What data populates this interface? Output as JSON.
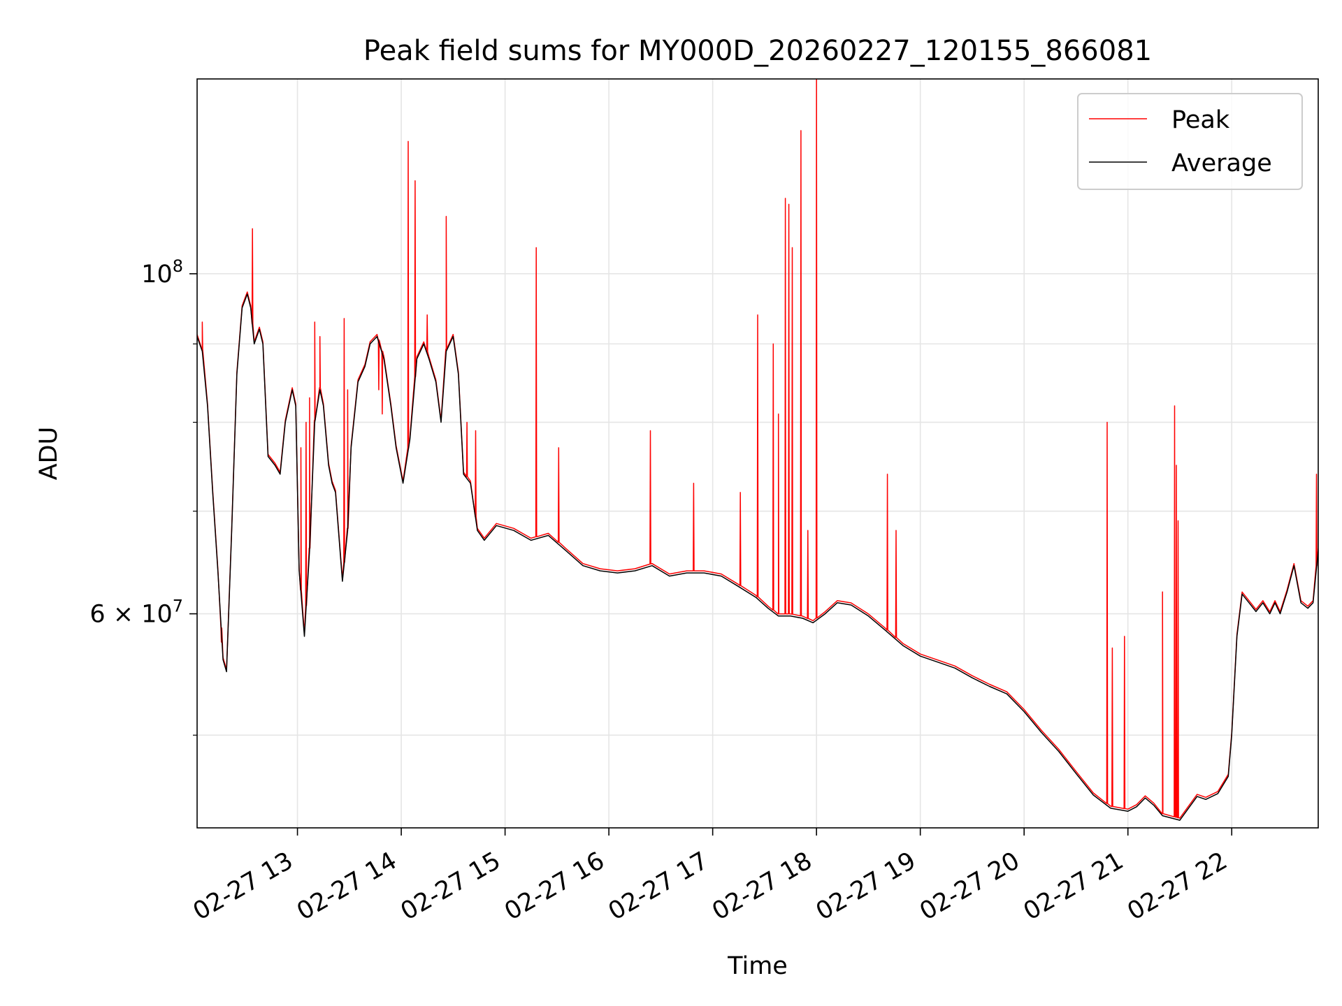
{
  "chart_data": {
    "type": "line",
    "title": "Peak field sums for MY000D_20260227_120155_866081",
    "xlabel": "Time",
    "ylabel": "ADU",
    "yscale": "log",
    "xlim": [
      "2026-02-27 12:02",
      "2026-02-27 22:50"
    ],
    "ylim": [
      43500000,
      134000000
    ],
    "grid": true,
    "legend": "top-right",
    "x_ticks": [
      "02-27 13",
      "02-27 14",
      "02-27 15",
      "02-27 16",
      "02-27 17",
      "02-27 18",
      "02-27 19",
      "02-27 20",
      "02-27 21",
      "02-27 22"
    ],
    "y_ticks": [
      {
        "value": 100000000,
        "base": "10",
        "exp": "8"
      },
      {
        "value": 60000000,
        "mant": "6",
        "base": "10",
        "exp": "7"
      }
    ],
    "series": [
      {
        "name": "Peak",
        "color": "#ff0000",
        "spikes": [
          [
            "2026-02-27 12:05",
            93000000
          ],
          [
            "2026-02-27 12:16",
            57500000
          ],
          [
            "2026-02-27 12:34",
            107000000
          ],
          [
            "2026-02-27 13:02",
            77000000
          ],
          [
            "2026-02-27 13:05",
            80000000
          ],
          [
            "2026-02-27 13:07",
            83000000
          ],
          [
            "2026-02-27 13:10",
            93000000
          ],
          [
            "2026-02-27 13:13",
            91000000
          ],
          [
            "2026-02-27 13:27",
            93500000
          ],
          [
            "2026-02-27 13:29",
            84000000
          ],
          [
            "2026-02-27 13:47",
            84000000
          ],
          [
            "2026-02-27 13:49",
            81000000
          ],
          [
            "2026-02-27 14:04",
            122000000
          ],
          [
            "2026-02-27 14:08",
            115000000
          ],
          [
            "2026-02-27 14:15",
            94000000
          ],
          [
            "2026-02-27 14:26",
            109000000
          ],
          [
            "2026-02-27 14:38",
            80000000
          ],
          [
            "2026-02-27 14:43",
            79000000
          ],
          [
            "2026-02-27 15:18",
            104000000
          ],
          [
            "2026-02-27 15:31",
            77000000
          ],
          [
            "2026-02-27 16:24",
            79000000
          ],
          [
            "2026-02-27 16:49",
            73000000
          ],
          [
            "2026-02-27 17:16",
            72000000
          ],
          [
            "2026-02-27 17:26",
            94000000
          ],
          [
            "2026-02-27 17:35",
            90000000
          ],
          [
            "2026-02-27 17:38",
            81000000
          ],
          [
            "2026-02-27 17:42",
            112000000
          ],
          [
            "2026-02-27 17:44",
            111000000
          ],
          [
            "2026-02-27 17:46",
            104000000
          ],
          [
            "2026-02-27 17:51",
            124000000
          ],
          [
            "2026-02-27 17:55",
            68000000
          ],
          [
            "2026-02-27 18:00",
            134000000
          ],
          [
            "2026-02-27 18:41",
            74000000
          ],
          [
            "2026-02-27 18:46",
            68000000
          ],
          [
            "2026-02-27 20:48",
            80000000
          ],
          [
            "2026-02-27 20:51",
            57000000
          ],
          [
            "2026-02-27 20:58",
            58000000
          ],
          [
            "2026-02-27 21:20",
            62000000
          ],
          [
            "2026-02-27 21:27",
            82000000
          ],
          [
            "2026-02-27 21:28",
            75000000
          ],
          [
            "2026-02-27 21:29",
            69000000
          ],
          [
            "2026-02-27 22:49",
            74000000
          ]
        ]
      },
      {
        "name": "Average",
        "color": "#000000",
        "points": [
          [
            "2026-02-27 12:02",
            91000000
          ],
          [
            "2026-02-27 12:05",
            89000000
          ],
          [
            "2026-02-27 12:08",
            82000000
          ],
          [
            "2026-02-27 12:11",
            72000000
          ],
          [
            "2026-02-27 12:14",
            64000000
          ],
          [
            "2026-02-27 12:17",
            56000000
          ],
          [
            "2026-02-27 12:19",
            55000000
          ],
          [
            "2026-02-27 12:22",
            68000000
          ],
          [
            "2026-02-27 12:25",
            86000000
          ],
          [
            "2026-02-27 12:28",
            95000000
          ],
          [
            "2026-02-27 12:31",
            97000000
          ],
          [
            "2026-02-27 12:33",
            95000000
          ],
          [
            "2026-02-27 12:35",
            90000000
          ],
          [
            "2026-02-27 12:38",
            92000000
          ],
          [
            "2026-02-27 12:40",
            90000000
          ],
          [
            "2026-02-27 12:43",
            76000000
          ],
          [
            "2026-02-27 12:47",
            75000000
          ],
          [
            "2026-02-27 12:50",
            74000000
          ],
          [
            "2026-02-27 12:53",
            80000000
          ],
          [
            "2026-02-27 12:57",
            84000000
          ],
          [
            "2026-02-27 12:59",
            82000000
          ],
          [
            "2026-02-27 13:01",
            64000000
          ],
          [
            "2026-02-27 13:02",
            62000000
          ],
          [
            "2026-02-27 13:04",
            58000000
          ],
          [
            "2026-02-27 13:07",
            66000000
          ],
          [
            "2026-02-27 13:10",
            80000000
          ],
          [
            "2026-02-27 13:13",
            84000000
          ],
          [
            "2026-02-27 13:15",
            82000000
          ],
          [
            "2026-02-27 13:18",
            75000000
          ],
          [
            "2026-02-27 13:20",
            73000000
          ],
          [
            "2026-02-27 13:22",
            72000000
          ],
          [
            "2026-02-27 13:26",
            63000000
          ],
          [
            "2026-02-27 13:29",
            68000000
          ],
          [
            "2026-02-27 13:31",
            77000000
          ],
          [
            "2026-02-27 13:35",
            85000000
          ],
          [
            "2026-02-27 13:39",
            87000000
          ],
          [
            "2026-02-27 13:42",
            90000000
          ],
          [
            "2026-02-27 13:46",
            91000000
          ],
          [
            "2026-02-27 13:50",
            88000000
          ],
          [
            "2026-02-27 13:54",
            82000000
          ],
          [
            "2026-02-27 13:57",
            77000000
          ],
          [
            "2026-02-27 14:01",
            73000000
          ],
          [
            "2026-02-27 14:05",
            78000000
          ],
          [
            "2026-02-27 14:09",
            88000000
          ],
          [
            "2026-02-27 14:13",
            90000000
          ],
          [
            "2026-02-27 14:16",
            88000000
          ],
          [
            "2026-02-27 14:20",
            85000000
          ],
          [
            "2026-02-27 14:23",
            80000000
          ],
          [
            "2026-02-27 14:26",
            89000000
          ],
          [
            "2026-02-27 14:30",
            91000000
          ],
          [
            "2026-02-27 14:33",
            86000000
          ],
          [
            "2026-02-27 14:36",
            74000000
          ],
          [
            "2026-02-27 14:40",
            73000000
          ],
          [
            "2026-02-27 14:44",
            68000000
          ],
          [
            "2026-02-27 14:48",
            67000000
          ],
          [
            "2026-02-27 14:55",
            68500000
          ],
          [
            "2026-02-27 15:05",
            68000000
          ],
          [
            "2026-02-27 15:15",
            67000000
          ],
          [
            "2026-02-27 15:25",
            67500000
          ],
          [
            "2026-02-27 15:35",
            66000000
          ],
          [
            "2026-02-27 15:45",
            64500000
          ],
          [
            "2026-02-27 15:55",
            64000000
          ],
          [
            "2026-02-27 16:05",
            63800000
          ],
          [
            "2026-02-27 16:15",
            64000000
          ],
          [
            "2026-02-27 16:25",
            64500000
          ],
          [
            "2026-02-27 16:35",
            63500000
          ],
          [
            "2026-02-27 16:45",
            63800000
          ],
          [
            "2026-02-27 16:55",
            63800000
          ],
          [
            "2026-02-27 17:05",
            63500000
          ],
          [
            "2026-02-27 17:15",
            62500000
          ],
          [
            "2026-02-27 17:25",
            61500000
          ],
          [
            "2026-02-27 17:32",
            60500000
          ],
          [
            "2026-02-27 17:38",
            59800000
          ],
          [
            "2026-02-27 17:45",
            59800000
          ],
          [
            "2026-02-27 17:52",
            59600000
          ],
          [
            "2026-02-27 17:58",
            59200000
          ],
          [
            "2026-02-27 18:05",
            60000000
          ],
          [
            "2026-02-27 18:12",
            61000000
          ],
          [
            "2026-02-27 18:20",
            60800000
          ],
          [
            "2026-02-27 18:30",
            59800000
          ],
          [
            "2026-02-27 18:40",
            58500000
          ],
          [
            "2026-02-27 18:50",
            57200000
          ],
          [
            "2026-02-27 19:00",
            56300000
          ],
          [
            "2026-02-27 19:10",
            55800000
          ],
          [
            "2026-02-27 19:20",
            55300000
          ],
          [
            "2026-02-27 19:30",
            54500000
          ],
          [
            "2026-02-27 19:40",
            53800000
          ],
          [
            "2026-02-27 19:50",
            53200000
          ],
          [
            "2026-02-27 20:00",
            51800000
          ],
          [
            "2026-02-27 20:10",
            50200000
          ],
          [
            "2026-02-27 20:20",
            48800000
          ],
          [
            "2026-02-27 20:30",
            47200000
          ],
          [
            "2026-02-27 20:40",
            45700000
          ],
          [
            "2026-02-27 20:50",
            44800000
          ],
          [
            "2026-02-27 21:00",
            44600000
          ],
          [
            "2026-02-27 21:05",
            44900000
          ],
          [
            "2026-02-27 21:10",
            45500000
          ],
          [
            "2026-02-27 21:15",
            45000000
          ],
          [
            "2026-02-27 21:20",
            44300000
          ],
          [
            "2026-02-27 21:30",
            44000000
          ],
          [
            "2026-02-27 21:35",
            44800000
          ],
          [
            "2026-02-27 21:40",
            45600000
          ],
          [
            "2026-02-27 21:45",
            45400000
          ],
          [
            "2026-02-27 21:52",
            45800000
          ],
          [
            "2026-02-27 21:58",
            47000000
          ],
          [
            "2026-02-27 22:00",
            50000000
          ],
          [
            "2026-02-27 22:03",
            58000000
          ],
          [
            "2026-02-27 22:06",
            61800000
          ],
          [
            "2026-02-27 22:10",
            61000000
          ],
          [
            "2026-02-27 22:14",
            60200000
          ],
          [
            "2026-02-27 22:18",
            61000000
          ],
          [
            "2026-02-27 22:22",
            60000000
          ],
          [
            "2026-02-27 22:25",
            61000000
          ],
          [
            "2026-02-27 22:28",
            60000000
          ],
          [
            "2026-02-27 22:32",
            62000000
          ],
          [
            "2026-02-27 22:36",
            64500000
          ],
          [
            "2026-02-27 22:40",
            61000000
          ],
          [
            "2026-02-27 22:44",
            60500000
          ],
          [
            "2026-02-27 22:47",
            61000000
          ],
          [
            "2026-02-27 22:50",
            66000000
          ]
        ]
      }
    ]
  }
}
